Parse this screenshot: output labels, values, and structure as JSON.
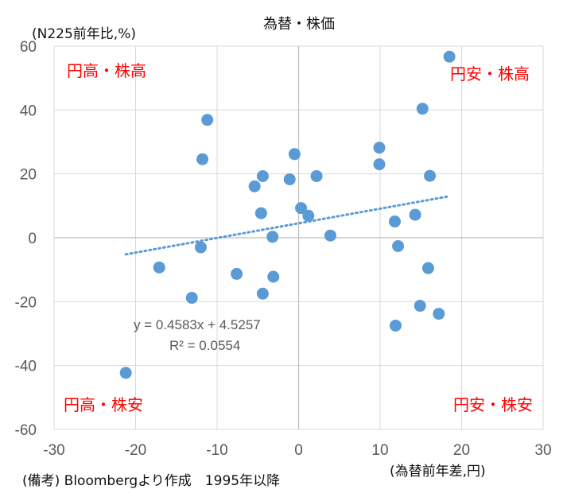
{
  "chart_data": {
    "type": "scatter",
    "title": "為替・株価",
    "ylabel": "(N225前年比,%)",
    "xlabel": "(為替前年差,円)",
    "xlim": [
      -30,
      30
    ],
    "ylim": [
      -60,
      60
    ],
    "x_ticks": [
      -30,
      -20,
      -10,
      0,
      10,
      20,
      30
    ],
    "y_ticks": [
      -60,
      -40,
      -20,
      0,
      20,
      40,
      60
    ],
    "grid": true,
    "point_color": "#5b9bd5",
    "quadrant_labels": {
      "top_left": "円高・株高",
      "top_right": "円安・株高",
      "bottom_left": "円高・株安",
      "bottom_right": "円安・株安"
    },
    "quadrant_color": "#ff0000",
    "trendline": {
      "equation": "y = 0.4583x + 4.5257",
      "r_squared": "R² = 0.0554",
      "slope": 0.4583,
      "intercept": 4.5257,
      "x_range": [
        -21.2,
        18.5
      ],
      "color": "#5b9bd5"
    },
    "points": [
      {
        "x": 18.5,
        "y": 56.7
      },
      {
        "x": 15.2,
        "y": 40.4
      },
      {
        "x": -11.2,
        "y": 36.9
      },
      {
        "x": 9.9,
        "y": 28.2
      },
      {
        "x": -0.5,
        "y": 26.2
      },
      {
        "x": -11.8,
        "y": 24.6
      },
      {
        "x": 9.9,
        "y": 23.0
      },
      {
        "x": -4.4,
        "y": 19.3
      },
      {
        "x": 2.2,
        "y": 19.3
      },
      {
        "x": 16.1,
        "y": 19.4
      },
      {
        "x": -1.1,
        "y": 18.3
      },
      {
        "x": -5.4,
        "y": 16.1
      },
      {
        "x": 0.3,
        "y": 9.3
      },
      {
        "x": -4.6,
        "y": 7.7
      },
      {
        "x": 1.2,
        "y": 6.9
      },
      {
        "x": 14.3,
        "y": 7.2
      },
      {
        "x": 11.8,
        "y": 5.1
      },
      {
        "x": 3.9,
        "y": 0.7
      },
      {
        "x": -3.2,
        "y": 0.3
      },
      {
        "x": -12.0,
        "y": -3.0
      },
      {
        "x": 12.2,
        "y": -2.6
      },
      {
        "x": -17.1,
        "y": -9.3
      },
      {
        "x": 15.9,
        "y": -9.5
      },
      {
        "x": -7.6,
        "y": -11.3
      },
      {
        "x": -3.1,
        "y": -12.2
      },
      {
        "x": -4.4,
        "y": -17.5
      },
      {
        "x": -13.1,
        "y": -18.8
      },
      {
        "x": 14.9,
        "y": -21.3
      },
      {
        "x": 17.2,
        "y": -23.8
      },
      {
        "x": 11.9,
        "y": -27.5
      },
      {
        "x": -21.2,
        "y": -42.3
      }
    ]
  },
  "source_note": "(備考) Bloombergより作成　1995年以降"
}
